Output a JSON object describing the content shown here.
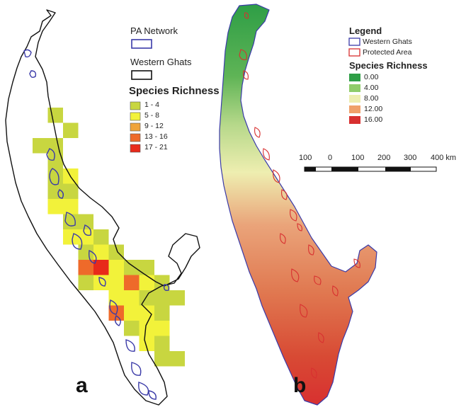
{
  "panel_a": {
    "letter": "a",
    "legend": {
      "pa_network_label": "PA  Network",
      "western_ghats_label": "Western  Ghats",
      "richness_title": "Species Richness",
      "classes": [
        {
          "label": "1 - 4",
          "color": "#c8d640"
        },
        {
          "label": "5 - 8",
          "color": "#f2f23a"
        },
        {
          "label": "9 - 12",
          "color": "#f0a43a"
        },
        {
          "label": "13 - 16",
          "color": "#ee6a2a"
        },
        {
          "label": "17 - 21",
          "color": "#e82a1a"
        }
      ],
      "pa_color": "#3a3aa8",
      "ghats_color": "#111111"
    }
  },
  "panel_b": {
    "letter": "b",
    "legend": {
      "title": "Legend",
      "western_ghats_label": "Western Ghats",
      "protected_area_label": "Protected Area",
      "richness_title": "Species Richness",
      "ghats_color": "#3a3aa8",
      "pa_color": "#d83030",
      "classes": [
        {
          "label": "0.00",
          "color": "#2e9e46"
        },
        {
          "label": "4.00",
          "color": "#8fcc6a"
        },
        {
          "label": "8.00",
          "color": "#eeeeb0"
        },
        {
          "label": "12.00",
          "color": "#f0a06a"
        },
        {
          "label": "16.00",
          "color": "#d83030"
        }
      ]
    },
    "scale_bar": {
      "labels": [
        "100",
        "0",
        "100",
        "200",
        "300",
        "400 km"
      ]
    }
  }
}
